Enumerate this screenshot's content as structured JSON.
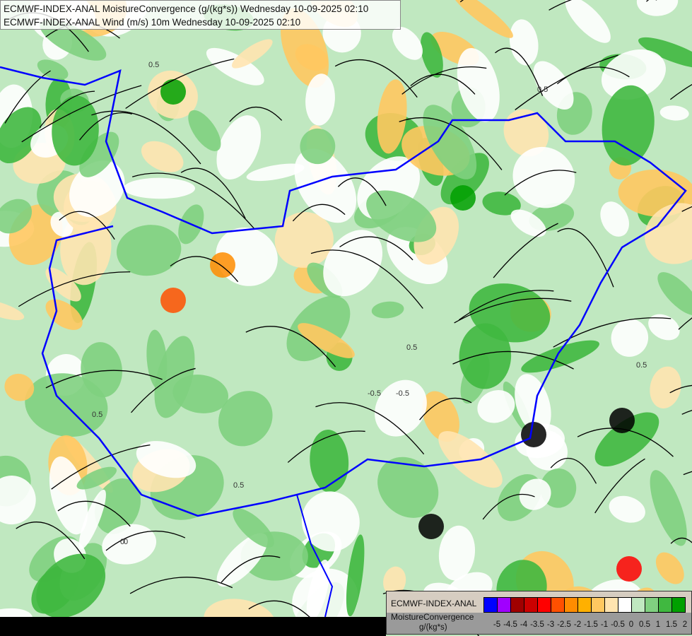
{
  "header": {
    "title_line1": "ECMWF-INDEX-ANAL MoistureConvergence (g/(kg*s)) Wednesday 10-09-2025 02:10",
    "title_line2": "ECMWF-INDEX-ANAL Wind (m/s) 10m Wednesday 10-09-2025 02:10"
  },
  "legend": {
    "model": "ECMWF-INDEX-ANAL",
    "parameter": "MoistureConvergence",
    "unit": "g/(kg*s)",
    "colors": [
      "#0000ff",
      "#a000ff",
      "#a00000",
      "#cc0000",
      "#ff0000",
      "#ff5000",
      "#ff8c00",
      "#ffb000",
      "#ffc860",
      "#ffe4b0",
      "#ffffff",
      "#c0e8c0",
      "#80d080",
      "#40b840",
      "#00a000"
    ],
    "tick_labels": [
      "-5",
      "-4.5",
      "-4",
      "-3.5",
      "-3",
      "-2.5",
      "-2",
      "-1.5",
      "-1",
      "-0.5",
      "0",
      "0.5",
      "1",
      "1.5",
      "2"
    ]
  },
  "map": {
    "contour_labels": [
      "0.5",
      "-0.5",
      "0",
      "0.5",
      "0.5",
      "-0.5",
      "0.5",
      "0",
      "0.5",
      "0.5"
    ],
    "border_color": "#0000ff",
    "streamline_color": "#000000"
  }
}
